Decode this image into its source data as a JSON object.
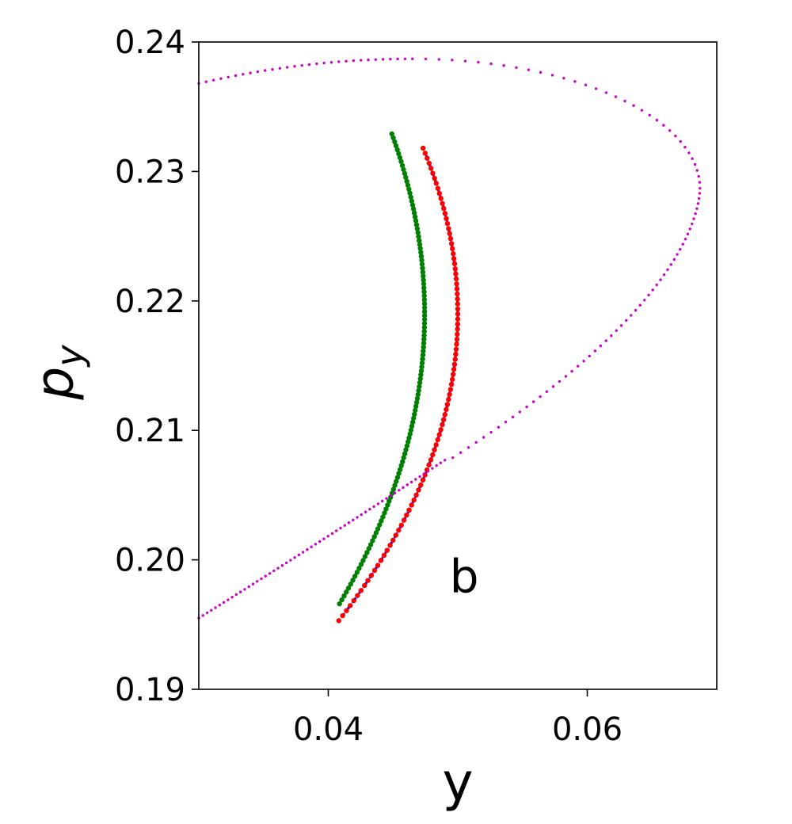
{
  "chart_data": {
    "type": "scatter",
    "title": "",
    "xlabel": "y",
    "ylabel": "p",
    "ylabel_subscript": "y",
    "xlim": [
      0.03,
      0.07
    ],
    "ylim": [
      0.19,
      0.24
    ],
    "xticks": [
      0.04,
      0.06
    ],
    "xtick_labels": [
      "0.04",
      "0.06"
    ],
    "yticks": [
      0.19,
      0.2,
      0.21,
      0.22,
      0.23,
      0.24
    ],
    "ytick_labels": [
      "0.19",
      "0.20",
      "0.21",
      "0.22",
      "0.23",
      "0.24"
    ],
    "grid": false,
    "annotation": {
      "text": "b",
      "x": 0.0505,
      "y": 0.1975
    },
    "series": [
      {
        "color": "#0000ff",
        "marker_size": 1.7,
        "count": 150,
        "curve": {
          "a": 0.0165,
          "b": -0.1636,
          "c": 0.4374
        },
        "y_range": [
          0.1958,
          0.2314
        ]
      },
      {
        "color": "#ff0000",
        "marker_size": 3.2,
        "count": 95,
        "curve": {
          "a": 0.0165,
          "b": -0.1636,
          "c": 0.4374
        },
        "y_range": [
          0.1953,
          0.2318
        ]
      },
      {
        "color": "#008000",
        "marker_size": 3.2,
        "count": 120,
        "curve": {
          "a": 0.01504,
          "b": -0.131,
          "c": 0.3341
        },
        "y_range": [
          0.1966,
          0.2329
        ]
      },
      {
        "color": "#cc00cc",
        "marker_size": 1.7,
        "count": 170,
        "x_range": [
          0.03,
          0.0687
        ],
        "segments": [
          {
            "x": [
              0.03,
              0.0687
            ],
            "y_of_x_lower": {
              "a": 0.03,
              "slope": 0.625,
              "b": 0.1955
            }
          }
        ],
        "top_branch": {
          "vertex_y": 0.2287,
          "vertex_x": 0.0687,
          "top_y": 0.2387,
          "top_x": 0.0465,
          "end_x": 0.03,
          "end_y": 0.2368
        }
      }
    ]
  }
}
